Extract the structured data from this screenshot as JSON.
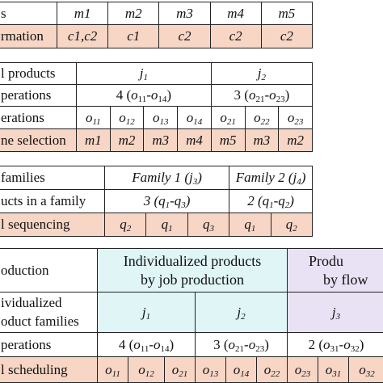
{
  "table1": {
    "row1": {
      "label": "s",
      "cells": [
        "m1",
        "m2",
        "m3",
        "m4",
        "m5"
      ]
    },
    "row2": {
      "label": "rmation",
      "cells": [
        "c1,c2",
        "c1",
        "c2",
        "c2",
        "c2"
      ]
    }
  },
  "table2": {
    "row1": {
      "label": "l products",
      "j1": "j",
      "j1_sub": "1",
      "j2": "j",
      "j2_sub": "2"
    },
    "row2": {
      "label": "perations",
      "j1_ops": "4 (",
      "j1_ops_a": "o",
      "j1_ops_a_sub": "11",
      "j1_ops_dash": "-",
      "j1_ops_b": "o",
      "j1_ops_b_sub": "14",
      "j1_ops_close": ")",
      "j2_ops": "3 (",
      "j2_ops_a": "o",
      "j2_ops_a_sub": "21",
      "j2_ops_dash": "-",
      "j2_ops_b": "o",
      "j2_ops_b_sub": "23",
      "j2_ops_close": ")"
    },
    "row3": {
      "label": "erations",
      "ops": [
        {
          "o": "o",
          "s": "11"
        },
        {
          "o": "o",
          "s": "12"
        },
        {
          "o": "o",
          "s": "13"
        },
        {
          "o": "o",
          "s": "14"
        },
        {
          "o": "o",
          "s": "21"
        },
        {
          "o": "o",
          "s": "22"
        },
        {
          "o": "o",
          "s": "23"
        }
      ]
    },
    "row4": {
      "label": "ne selection",
      "cells": [
        "m1",
        "m2",
        "m3",
        "m4",
        "m5",
        "m3",
        "m2"
      ]
    }
  },
  "table3": {
    "row1": {
      "label": "families",
      "f1": "Family 1 (",
      "f1_j": "j",
      "f1_js": "3",
      "f1_close": ")",
      "f2": "Family 2 (",
      "f2_j": "j",
      "f2_js": "4",
      "f2_close": ")"
    },
    "row2": {
      "label": "ucts in a family",
      "f1_n": "3 (",
      "f1_a": "q",
      "f1_as": "1",
      "f1_dash": "-",
      "f1_b": "q",
      "f1_bs": "3",
      "f1_close": ")",
      "f2_n": "2 (",
      "f2_a": "q",
      "f2_as": "1",
      "f2_dash": "-",
      "f2_b": "q",
      "f2_bs": "2",
      "f2_close": ")"
    },
    "row3": {
      "label": "l sequencing",
      "cells": [
        {
          "q": "q",
          "s": "2"
        },
        {
          "q": "q",
          "s": "1"
        },
        {
          "q": "q",
          "s": "3"
        },
        {
          "q": "q",
          "s": "1"
        },
        {
          "q": "q",
          "s": "2"
        }
      ]
    }
  },
  "table4": {
    "row1": {
      "label": "oduction",
      "job_l1": "Individualized products",
      "job_l2": "by job production",
      "flow_l1": "Produ",
      "flow_l2": "by flow"
    },
    "row2": {
      "label_l1": "ividualized",
      "label_l2": "oduct families",
      "j1": "j",
      "j1s": "1",
      "j2": "j",
      "j2s": "2",
      "j3": "j",
      "j3s": "3"
    },
    "row3": {
      "label": "perations",
      "j1_ops": "4 (",
      "j1_a": "o",
      "j1_as": "11",
      "j1_b": "o",
      "j1_bs": "14",
      "j2_ops": "3 (",
      "j2_a": "o",
      "j2_as": "21",
      "j2_b": "o",
      "j2_bs": "23",
      "j3_ops": "2 (",
      "j3_a": "o",
      "j3_as": "31",
      "j3_b": "o",
      "j3_bs": "32",
      "dash": "-",
      "close": ")"
    },
    "row4": {
      "label": "l scheduling",
      "cells": [
        {
          "o": "o",
          "s": "11"
        },
        {
          "o": "o",
          "s": "12"
        },
        {
          "o": "o",
          "s": "21"
        },
        {
          "o": "o",
          "s": "13"
        },
        {
          "o": "o",
          "s": "14"
        },
        {
          "o": "o",
          "s": "22"
        },
        {
          "o": "o",
          "s": "23"
        },
        {
          "o": "o",
          "s": "31"
        },
        {
          "o": "o",
          "s": "32"
        }
      ]
    }
  }
}
